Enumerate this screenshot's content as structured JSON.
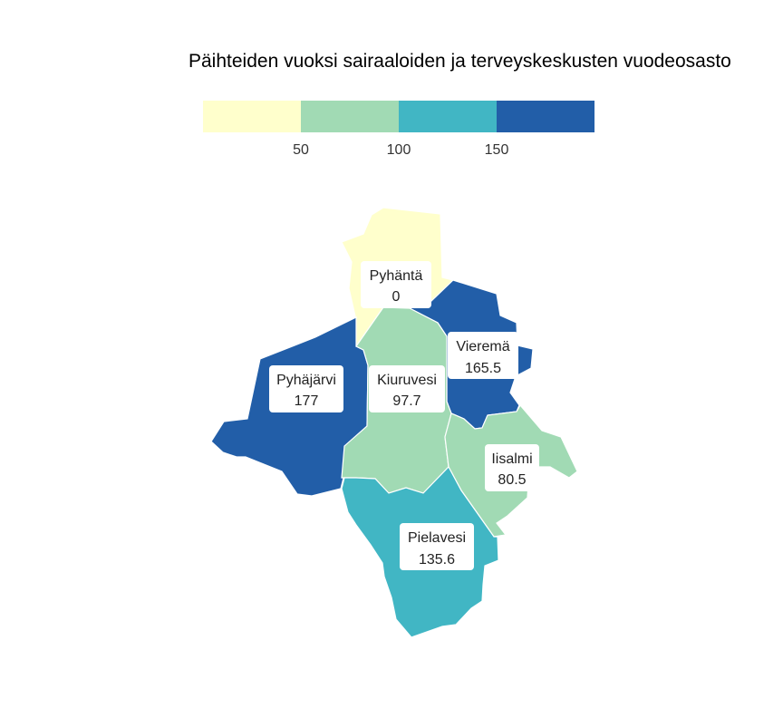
{
  "title": "Päihteiden vuoksi sairaaloiden ja terveyskeskusten vuodeosasto",
  "legend": {
    "bins": [
      {
        "color": "#ffffcc"
      },
      {
        "color": "#a1dab4"
      },
      {
        "color": "#41b6c4"
      },
      {
        "color": "#225ea8"
      }
    ],
    "ticks": [
      "50",
      "100",
      "150"
    ]
  },
  "regions": [
    {
      "name": "Pyhäntä",
      "value": "0",
      "color": "#ffffcc"
    },
    {
      "name": "Vieremä",
      "value": "165.5",
      "color": "#225ea8"
    },
    {
      "name": "Pyhäjärvi",
      "value": "177",
      "color": "#225ea8"
    },
    {
      "name": "Kiuruvesi",
      "value": "97.7",
      "color": "#a1dab4"
    },
    {
      "name": "Iisalmi",
      "value": "80.5",
      "color": "#a1dab4"
    },
    {
      "name": "Pielavesi",
      "value": "135.6",
      "color": "#41b6c4"
    }
  ]
}
